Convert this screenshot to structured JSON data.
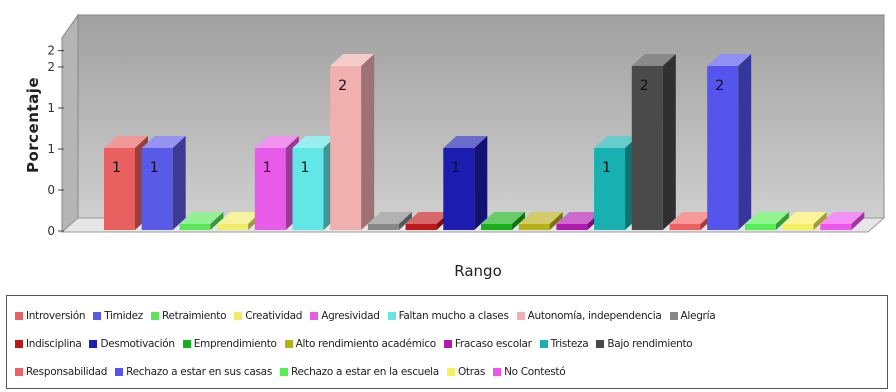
{
  "chart_data": {
    "type": "bar",
    "xlabel": "Rango",
    "ylabel": "Porcentaje",
    "ylim": [
      0,
      2.3
    ],
    "y_ticks": [
      {
        "v": 0,
        "label": "0"
      },
      {
        "v": 0.5,
        "label": "0"
      },
      {
        "v": 1,
        "label": "1"
      },
      {
        "v": 1.5,
        "label": "1"
      },
      {
        "v": 2,
        "label": "2"
      },
      {
        "v": 2.2,
        "label": "2"
      }
    ],
    "legend_position": "bottom",
    "grid": false,
    "series": [
      {
        "name": "Introversión",
        "value": 1,
        "color": "#e8605f"
      },
      {
        "name": "Timidez",
        "value": 1,
        "color": "#5a5ae8"
      },
      {
        "name": "Retraimiento",
        "value": 0,
        "color": "#5ae85a"
      },
      {
        "name": "Creatividad",
        "value": 0,
        "color": "#f0ec6a"
      },
      {
        "name": "Agresividad",
        "value": 1,
        "color": "#e85ae8"
      },
      {
        "name": "Faltan mucho a clases",
        "value": 1,
        "color": "#62e6e6"
      },
      {
        "name": "Autonomía, independencia",
        "value": 2,
        "color": "#f0b0b0"
      },
      {
        "name": "Alegría",
        "value": 0,
        "color": "#888888"
      },
      {
        "name": "Indisciplina",
        "value": 0,
        "color": "#c01818"
      },
      {
        "name": "Desmotivación",
        "value": 1,
        "color": "#1c1cb0"
      },
      {
        "name": "Emprendimiento",
        "value": 0,
        "color": "#18b018"
      },
      {
        "name": "Alto rendimiento académico",
        "value": 0,
        "color": "#b8b018"
      },
      {
        "name": "Fracaso escolar",
        "value": 0,
        "color": "#b018b0"
      },
      {
        "name": "Tristeza",
        "value": 1,
        "color": "#18b0b0"
      },
      {
        "name": "Bajo rendimiento",
        "value": 2,
        "color": "#4a4a4a"
      },
      {
        "name": "Responsabilidad",
        "value": 0,
        "color": "#f06060"
      },
      {
        "name": "Rechazo a estar en sus casas",
        "value": 2,
        "color": "#5555ee"
      },
      {
        "name": "Rechazo a estar en la escuela",
        "value": 0,
        "color": "#55ee55"
      },
      {
        "name": "Otras",
        "value": 0,
        "color": "#f5f060"
      },
      {
        "name": "No Contestó",
        "value": 0,
        "color": "#ee55ee"
      }
    ]
  },
  "legend_rows": [
    [
      0,
      1,
      2,
      3,
      4,
      5,
      6,
      7
    ],
    [
      8,
      9,
      10,
      11,
      12,
      13,
      14
    ],
    [
      15,
      16,
      17,
      18,
      19
    ]
  ]
}
